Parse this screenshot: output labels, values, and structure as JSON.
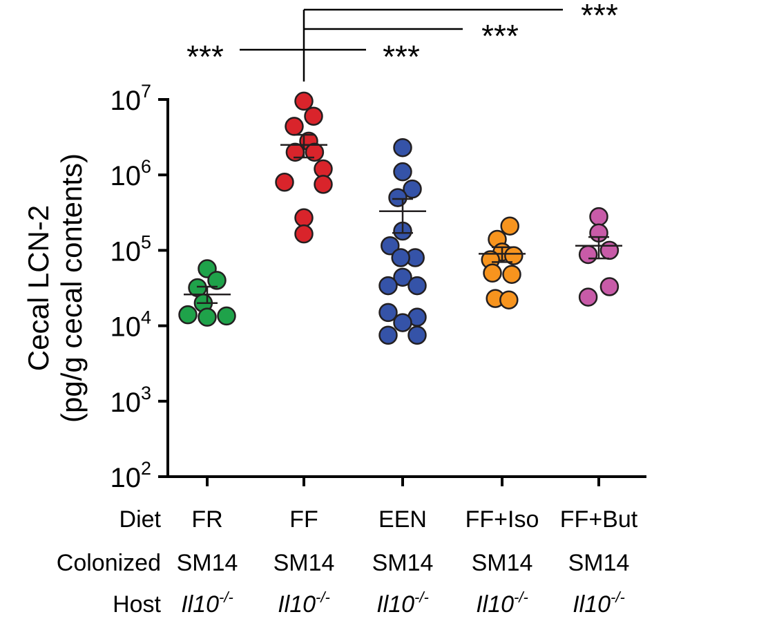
{
  "chart_data": {
    "type": "scatter",
    "ylabel": [
      "Cecal LCN-2",
      "(pg/g cecal contents)"
    ],
    "yscale": "log",
    "ylim": [
      100,
      10000000
    ],
    "yticks": [
      {
        "value": 100,
        "base": "10",
        "exp": "2"
      },
      {
        "value": 1000,
        "base": "10",
        "exp": "3"
      },
      {
        "value": 10000,
        "base": "10",
        "exp": "4"
      },
      {
        "value": 100000,
        "base": "10",
        "exp": "5"
      },
      {
        "value": 1000000,
        "base": "10",
        "exp": "6"
      },
      {
        "value": 10000000,
        "base": "10",
        "exp": "7"
      }
    ],
    "row_labels": [
      "Diet",
      "Colonized",
      "Host"
    ],
    "groups": [
      {
        "diet": "FR",
        "colonized": "SM14",
        "host_base": "Il10",
        "host_sup": "-/-",
        "color": "#1fa24a",
        "mean": 26000,
        "sem": [
          20000,
          33000
        ],
        "points": [
          {
            "y": 57000,
            "dx": 0
          },
          {
            "y": 40000,
            "dx": 1
          },
          {
            "y": 32000,
            "dx": -1
          },
          {
            "y": 20000,
            "dx": -0.4
          },
          {
            "y": 14000,
            "dx": -2
          },
          {
            "y": 13000,
            "dx": 0
          },
          {
            "y": 13500,
            "dx": 2
          }
        ]
      },
      {
        "diet": "FF",
        "colonized": "SM14",
        "host_base": "Il10",
        "host_sup": "-/-",
        "color": "#d9242b",
        "mean": 2500000,
        "sem": [
          1700000,
          3400000
        ],
        "points": [
          {
            "y": 9500000,
            "dx": 0
          },
          {
            "y": 6000000,
            "dx": 1
          },
          {
            "y": 4400000,
            "dx": -1
          },
          {
            "y": 2800000,
            "dx": 0.5
          },
          {
            "y": 2000000,
            "dx": -0.9
          },
          {
            "y": 2000000,
            "dx": 1.1
          },
          {
            "y": 1200000,
            "dx": 2
          },
          {
            "y": 800000,
            "dx": -2
          },
          {
            "y": 750000,
            "dx": 2
          },
          {
            "y": 270000,
            "dx": 0
          },
          {
            "y": 165000,
            "dx": 0
          }
        ]
      },
      {
        "diet": "EEN",
        "colonized": "SM14",
        "host_base": "Il10",
        "host_sup": "-/-",
        "color": "#3553a8",
        "mean": 330000,
        "sem": [
          170000,
          480000
        ],
        "points": [
          {
            "y": 2300000,
            "dx": 0
          },
          {
            "y": 1100000,
            "dx": 0
          },
          {
            "y": 650000,
            "dx": 1
          },
          {
            "y": 500000,
            "dx": -0.5
          },
          {
            "y": 180000,
            "dx": 0
          },
          {
            "y": 115000,
            "dx": -1.3
          },
          {
            "y": 80000,
            "dx": 1.3
          },
          {
            "y": 80000,
            "dx": -0.2
          },
          {
            "y": 44000,
            "dx": 0
          },
          {
            "y": 34000,
            "dx": -1.5
          },
          {
            "y": 34000,
            "dx": 1.5
          },
          {
            "y": 15000,
            "dx": -1.5
          },
          {
            "y": 13000,
            "dx": 1.5
          },
          {
            "y": 11000,
            "dx": 0
          },
          {
            "y": 7500,
            "dx": -1.5
          },
          {
            "y": 7500,
            "dx": 1.5
          }
        ]
      },
      {
        "diet": "FF+Iso",
        "colonized": "SM14",
        "host_base": "Il10",
        "host_sup": "-/-",
        "color": "#f7941e",
        "mean": 90000,
        "sem": [
          70000,
          110000
        ],
        "points": [
          {
            "y": 210000,
            "dx": 0.8
          },
          {
            "y": 140000,
            "dx": -0.5
          },
          {
            "y": 95000,
            "dx": 0
          },
          {
            "y": 85000,
            "dx": 1.2
          },
          {
            "y": 75000,
            "dx": -1.2
          },
          {
            "y": 50000,
            "dx": -1
          },
          {
            "y": 48000,
            "dx": 1
          },
          {
            "y": 23000,
            "dx": -0.7
          },
          {
            "y": 22000,
            "dx": 0.7
          }
        ]
      },
      {
        "diet": "FF+But",
        "colonized": "SM14",
        "host_base": "Il10",
        "host_sup": "-/-",
        "color": "#c85ba8",
        "mean": 115000,
        "sem": [
          78000,
          150000
        ],
        "points": [
          {
            "y": 280000,
            "dx": 0
          },
          {
            "y": 170000,
            "dx": 0
          },
          {
            "y": 100000,
            "dx": 1.1
          },
          {
            "y": 88000,
            "dx": -1.1
          },
          {
            "y": 33000,
            "dx": 1.1
          },
          {
            "y": 24000,
            "dx": -1.1
          }
        ]
      }
    ],
    "significance": [
      {
        "label": "***",
        "compare": [
          "FR",
          "FF"
        ]
      },
      {
        "label": "***",
        "compare": [
          "FF",
          "EEN"
        ]
      },
      {
        "label": "***",
        "compare": [
          "FF",
          "FF+Iso"
        ]
      },
      {
        "label": "***",
        "compare": [
          "FF",
          "FF+But"
        ]
      }
    ]
  }
}
